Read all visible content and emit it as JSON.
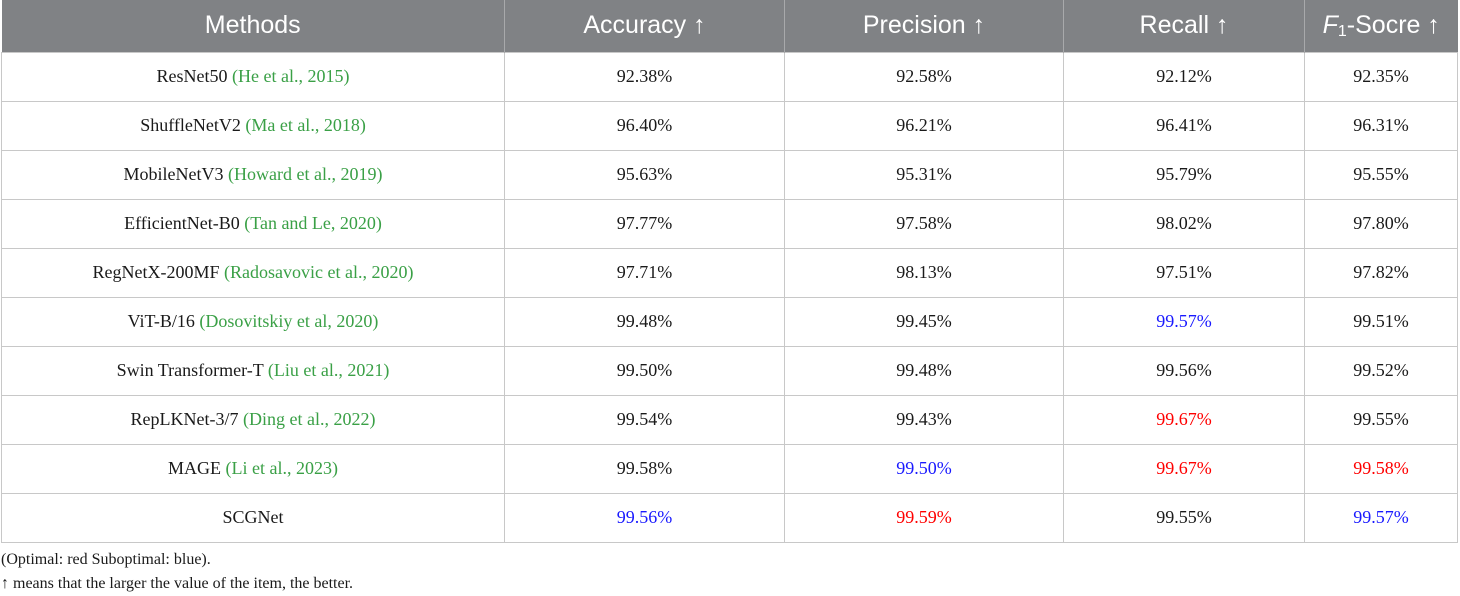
{
  "table": {
    "headers": [
      "Methods",
      "Accuracy ↑",
      "Precision ↑",
      "Recall ↑",
      "F1-Socre ↑"
    ],
    "colors": {
      "optimal": "#ff0000",
      "suboptimal": "#1a1aff",
      "citation": "#3aa046",
      "header_bg": "#808285"
    },
    "rows": [
      {
        "method": "ResNet50",
        "cite": "(He et al., 2015)",
        "values": [
          "92.38%",
          "92.58%",
          "92.12%",
          "92.35%"
        ],
        "highlight": [
          "",
          "",
          "",
          ""
        ]
      },
      {
        "method": "ShuffleNetV2",
        "cite": "(Ma et al., 2018)",
        "values": [
          "96.40%",
          "96.21%",
          "96.41%",
          "96.31%"
        ],
        "highlight": [
          "",
          "",
          "",
          ""
        ]
      },
      {
        "method": "MobileNetV3",
        "cite": "(Howard et al., 2019)",
        "values": [
          "95.63%",
          "95.31%",
          "95.79%",
          "95.55%"
        ],
        "highlight": [
          "",
          "",
          "",
          ""
        ]
      },
      {
        "method": "EfficientNet-B0",
        "cite": "(Tan and Le, 2020)",
        "values": [
          "97.77%",
          "97.58%",
          "98.02%",
          "97.80%"
        ],
        "highlight": [
          "",
          "",
          "",
          ""
        ]
      },
      {
        "method": "RegNetX-200MF",
        "cite": "(Radosavovic et al., 2020)",
        "values": [
          "97.71%",
          "98.13%",
          "97.51%",
          "97.82%"
        ],
        "highlight": [
          "",
          "",
          "",
          ""
        ]
      },
      {
        "method": "ViT-B/16",
        "cite": "(Dosovitskiy et al, 2020)",
        "values": [
          "99.48%",
          "99.45%",
          "99.57%",
          "99.51%"
        ],
        "highlight": [
          "",
          "",
          "suboptimal",
          ""
        ]
      },
      {
        "method": "Swin Transformer-T",
        "cite": "(Liu et al., 2021)",
        "values": [
          "99.50%",
          "99.48%",
          "99.56%",
          "99.52%"
        ],
        "highlight": [
          "",
          "",
          "",
          ""
        ]
      },
      {
        "method": "RepLKNet-3/7",
        "cite": "(Ding et al., 2022)",
        "values": [
          "99.54%",
          "99.43%",
          "99.67%",
          "99.55%"
        ],
        "highlight": [
          "",
          "",
          "optimal",
          ""
        ]
      },
      {
        "method": "MAGE",
        "cite": "(Li et al., 2023)",
        "values": [
          "99.58%",
          "99.50%",
          "99.67%",
          "99.58%"
        ],
        "highlight": [
          "",
          "suboptimal",
          "optimal",
          "optimal"
        ]
      },
      {
        "method": "SCGNet",
        "cite": "",
        "values": [
          "99.56%",
          "99.59%",
          "99.55%",
          "99.57%"
        ],
        "highlight": [
          "suboptimal",
          "optimal",
          "",
          "suboptimal"
        ]
      }
    ]
  },
  "notes": {
    "legend": "(Optimal: red Suboptimal: blue).",
    "arrow_note": "↑ means that the larger the value of the item, the better."
  }
}
